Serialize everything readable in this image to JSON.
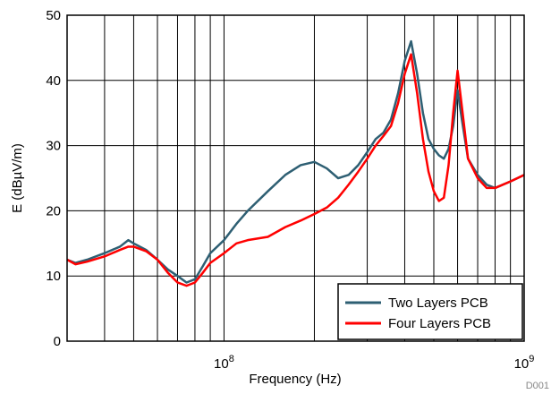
{
  "chart_data": {
    "type": "line",
    "xlabel": "Frequency (Hz)",
    "ylabel": "E (dBµV/m)",
    "xscale": "log",
    "xlim": [
      30000000,
      1000000000
    ],
    "ylim": [
      0,
      50
    ],
    "yticks": [
      0,
      10,
      20,
      30,
      40,
      50
    ],
    "ytick_labels": [
      "0",
      "10",
      "20",
      "30",
      "40",
      "50"
    ],
    "xtick_labels": [
      {
        "value": 100000000,
        "base": "10",
        "exp": "8"
      },
      {
        "value": 1000000000,
        "base": "10",
        "exp": "9"
      }
    ],
    "grid": true,
    "legend_position": "bottom-right",
    "figure_id": "D001",
    "series": [
      {
        "name": "Two Layers PCB",
        "color": "#2e5f73",
        "x": [
          30000000,
          32000000,
          35000000,
          40000000,
          45000000,
          48000000,
          50000000,
          55000000,
          60000000,
          65000000,
          70000000,
          75000000,
          80000000,
          85000000,
          90000000,
          100000000,
          110000000,
          120000000,
          140000000,
          160000000,
          180000000,
          200000000,
          220000000,
          240000000,
          260000000,
          280000000,
          300000000,
          320000000,
          340000000,
          360000000,
          380000000,
          400000000,
          420000000,
          440000000,
          460000000,
          480000000,
          500000000,
          520000000,
          540000000,
          560000000,
          580000000,
          600000000,
          620000000,
          650000000,
          700000000,
          750000000,
          800000000,
          900000000,
          1000000000
        ],
        "values": [
          12.5,
          12.0,
          12.5,
          13.5,
          14.5,
          15.5,
          15.0,
          14.0,
          12.5,
          11.0,
          10.0,
          9.0,
          9.5,
          11.5,
          13.5,
          15.5,
          18.0,
          20.0,
          23.0,
          25.5,
          27.0,
          27.5,
          26.5,
          25.0,
          25.5,
          27.0,
          29.0,
          31.0,
          32.0,
          34.0,
          38.0,
          43.0,
          46.0,
          41.0,
          35.0,
          31.0,
          29.5,
          28.5,
          28.0,
          29.5,
          33.0,
          38.5,
          34.0,
          28.0,
          25.5,
          24.0,
          23.5,
          24.5,
          25.5
        ]
      },
      {
        "name": "Four Layers PCB",
        "color": "#ff0000",
        "x": [
          30000000,
          32000000,
          35000000,
          40000000,
          45000000,
          48000000,
          50000000,
          55000000,
          60000000,
          65000000,
          70000000,
          75000000,
          80000000,
          85000000,
          90000000,
          100000000,
          110000000,
          120000000,
          140000000,
          160000000,
          180000000,
          200000000,
          220000000,
          240000000,
          260000000,
          280000000,
          300000000,
          320000000,
          340000000,
          360000000,
          380000000,
          400000000,
          420000000,
          440000000,
          460000000,
          480000000,
          500000000,
          520000000,
          540000000,
          560000000,
          580000000,
          600000000,
          620000000,
          650000000,
          700000000,
          750000000,
          800000000,
          900000000,
          1000000000
        ],
        "values": [
          12.5,
          11.8,
          12.2,
          13.0,
          14.0,
          14.5,
          14.5,
          13.8,
          12.5,
          10.5,
          9.0,
          8.5,
          9.0,
          10.5,
          12.0,
          13.5,
          15.0,
          15.5,
          16.0,
          17.5,
          18.5,
          19.5,
          20.5,
          22.0,
          24.0,
          26.0,
          28.0,
          30.0,
          31.5,
          33.0,
          36.5,
          41.0,
          44.0,
          38.0,
          31.0,
          26.0,
          23.0,
          21.5,
          22.0,
          27.0,
          35.0,
          41.5,
          36.0,
          28.0,
          25.0,
          23.5,
          23.5,
          24.5,
          25.5
        ]
      }
    ]
  }
}
